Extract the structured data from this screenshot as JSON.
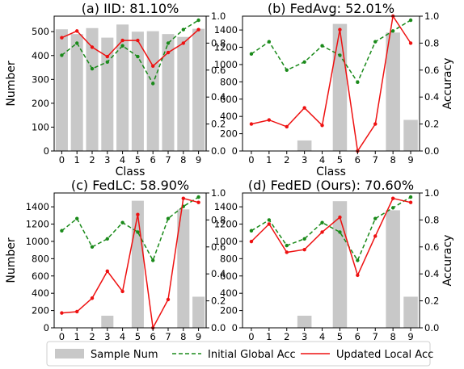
{
  "chart_data": [
    {
      "type": "bar+line",
      "title": "(a) IID: 81.10%",
      "xlabel": "Class",
      "ylabel_left": "Number",
      "ylabel_right": "",
      "categories": [
        "0",
        "1",
        "2",
        "3",
        "4",
        "5",
        "6",
        "7",
        "8",
        "9"
      ],
      "ylim_left": [
        0,
        565
      ],
      "ylim_right": [
        0,
        1.0
      ],
      "yticks_left": [
        0,
        100,
        200,
        300,
        400,
        500
      ],
      "yticks_right": [
        0.0,
        0.2,
        0.4,
        0.6,
        0.8,
        1.0
      ],
      "bar_values": [
        510,
        490,
        515,
        475,
        530,
        500,
        502,
        490,
        478,
        512
      ],
      "series": [
        {
          "name": "Initial Global Acc",
          "values": [
            0.71,
            0.8,
            0.61,
            0.66,
            0.78,
            0.7,
            0.5,
            0.8,
            0.9,
            0.97
          ]
        },
        {
          "name": "Updated Local Acc",
          "values": [
            0.84,
            0.89,
            0.77,
            0.7,
            0.82,
            0.82,
            0.63,
            0.73,
            0.8,
            0.9
          ]
        }
      ]
    },
    {
      "type": "bar+line",
      "title": "(b) FedAvg: 52.01%",
      "xlabel": "Class",
      "ylabel_left": "",
      "ylabel_right": "Accuracy",
      "categories": [
        "0",
        "1",
        "2",
        "3",
        "4",
        "5",
        "6",
        "7",
        "8",
        "9"
      ],
      "ylim_left": [
        0,
        1560
      ],
      "ylim_right": [
        0,
        1.0
      ],
      "yticks_left": [
        0,
        200,
        400,
        600,
        800,
        1000,
        1200,
        1400
      ],
      "yticks_right": [
        0.0,
        0.2,
        0.4,
        0.6,
        0.8,
        1.0
      ],
      "bar_values": [
        0,
        0,
        0,
        122,
        0,
        1470,
        0,
        0,
        1370,
        360
      ],
      "series": [
        {
          "name": "Initial Global Acc",
          "values": [
            0.72,
            0.81,
            0.6,
            0.66,
            0.78,
            0.71,
            0.51,
            0.81,
            0.89,
            0.97
          ]
        },
        {
          "name": "Updated Local Acc",
          "values": [
            0.2,
            0.23,
            0.18,
            0.32,
            0.19,
            0.9,
            0.0,
            0.2,
            1.0,
            0.8
          ]
        }
      ]
    },
    {
      "type": "bar+line",
      "title": "(c) FedLC: 58.90%",
      "xlabel": "Class",
      "ylabel_left": "Number",
      "ylabel_right": "",
      "categories": [
        "0",
        "1",
        "2",
        "3",
        "4",
        "5",
        "6",
        "7",
        "8",
        "9"
      ],
      "ylim_left": [
        0,
        1560
      ],
      "ylim_right": [
        0,
        1.0
      ],
      "yticks_left": [
        0,
        200,
        400,
        600,
        800,
        1000,
        1200,
        1400
      ],
      "yticks_right": [
        0.0,
        0.2,
        0.4,
        0.6,
        0.8,
        1.0
      ],
      "bar_values": [
        0,
        0,
        0,
        140,
        0,
        1470,
        0,
        0,
        1370,
        360
      ],
      "series": [
        {
          "name": "Initial Global Acc",
          "values": [
            0.72,
            0.81,
            0.6,
            0.66,
            0.78,
            0.71,
            0.5,
            0.81,
            0.9,
            0.97
          ]
        },
        {
          "name": "Updated Local Acc",
          "values": [
            0.11,
            0.12,
            0.22,
            0.42,
            0.27,
            0.84,
            0.0,
            0.21,
            0.96,
            0.93
          ]
        }
      ]
    },
    {
      "type": "bar+line",
      "title": "(d) FedED (Ours): 70.60%",
      "xlabel": "Class",
      "ylabel_left": "",
      "ylabel_right": "Accuracy",
      "categories": [
        "0",
        "1",
        "2",
        "3",
        "4",
        "5",
        "6",
        "7",
        "8",
        "9"
      ],
      "ylim_left": [
        0,
        1560
      ],
      "ylim_right": [
        0,
        1.0
      ],
      "yticks_left": [
        0,
        200,
        400,
        600,
        800,
        1000,
        1200,
        1400
      ],
      "yticks_right": [
        0.0,
        0.2,
        0.4,
        0.6,
        0.8,
        1.0
      ],
      "bar_values": [
        0,
        0,
        0,
        140,
        0,
        1465,
        0,
        0,
        1360,
        360
      ],
      "series": [
        {
          "name": "Initial Global Acc",
          "values": [
            0.72,
            0.8,
            0.61,
            0.66,
            0.78,
            0.71,
            0.5,
            0.81,
            0.89,
            0.97
          ]
        },
        {
          "name": "Updated Local Acc",
          "values": [
            0.64,
            0.77,
            0.56,
            0.58,
            0.71,
            0.82,
            0.39,
            0.68,
            0.96,
            0.93
          ]
        }
      ]
    }
  ],
  "legend": {
    "position": "bottom",
    "items": [
      {
        "name": "Sample Num",
        "kind": "bar",
        "color": "#c8c8c8"
      },
      {
        "name": "Initial Global Acc",
        "kind": "dashed-line",
        "color": "#1a8a1a"
      },
      {
        "name": "Updated Local Acc",
        "kind": "line",
        "color": "#ee1111"
      }
    ]
  },
  "colors": {
    "bar": "#c8c8c8",
    "initial_global": "#1a8a1a",
    "updated_local": "#ee1111"
  }
}
